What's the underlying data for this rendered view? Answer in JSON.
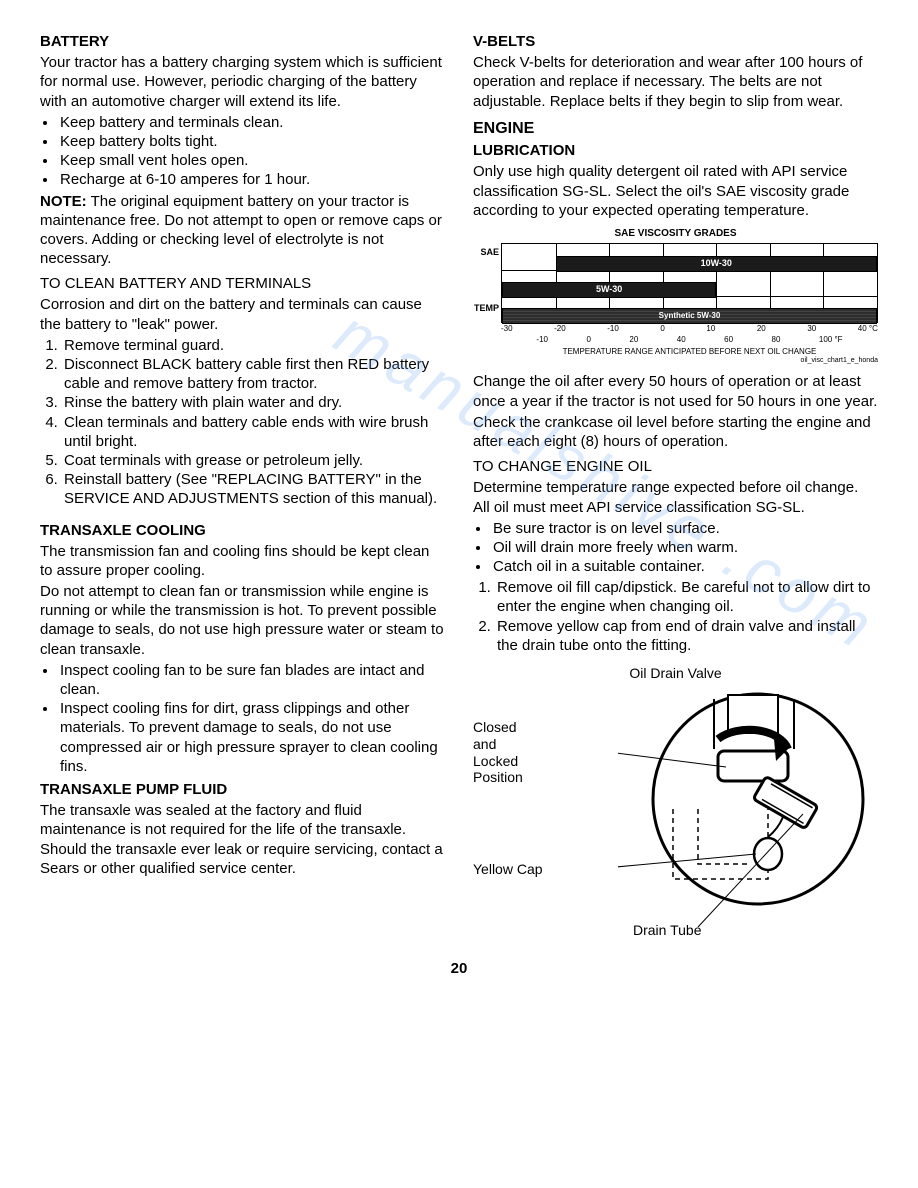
{
  "pageNumber": "20",
  "watermark": "manualshive .com",
  "left": {
    "battery": {
      "heading": "BATTERY",
      "p1": "Your tractor has a battery charging system which is sufficient for normal use.  However, periodic charging of the battery with an automotive charger will extend its life.",
      "bullets": [
        "Keep battery and terminals clean.",
        "Keep battery bolts tight.",
        "Keep small vent holes open.",
        "Recharge at  6-10 amperes for 1 hour."
      ],
      "noteLabel": "NOTE:",
      "noteText": " The original equipment battery on your tractor is maintenance free. Do not attempt to open or remove caps or covers. Adding or checking level of electrolyte is not necessary.",
      "cleanHeading": "TO CLEAN BATTERY AND TERMINALS",
      "cleanP": "Corrosion and dirt on the battery and terminals can cause the battery to \"leak\" power.",
      "cleanSteps": [
        "Remove terminal guard.",
        "Disconnect BLACK battery cable first then RED  battery cable and remove battery from tractor.",
        "Rinse the battery with plain water and dry.",
        "Clean terminals and battery cable ends with wire brush until bright.",
        "Coat terminals with grease or petroleum jelly.",
        "Reinstall battery (See \"REPLACING BATTERY\" in the SERVICE AND ADJUSTMENTS section of this manual)."
      ]
    },
    "transCooling": {
      "heading": "TRANSAXLE COOLING",
      "p1": "The transmission fan and cooling fins should be kept clean to assure proper cooling.",
      "p2": "Do not attempt to clean fan or transmission while engine is running or while the transmission is hot. To prevent possible damage to seals, do not use high pressure water or steam to clean transaxle.",
      "bullets": [
        "Inspect cooling fan to be sure fan blades are intact and clean.",
        "Inspect cooling fins for dirt, grass clippings and other materials.  To prevent damage to seals, do not use compressed air or high pressure sprayer to clean cooling fins."
      ]
    },
    "pumpFluid": {
      "heading": "TRANSAXLE PUMP FLUID",
      "p": "The transaxle was sealed at the factory and fluid maintenance is not required for the life of the transaxle.  Should the transaxle ever leak or require servicing, contact a Sears or other qualified service center."
    }
  },
  "right": {
    "vbelts": {
      "heading": "V-BELTS",
      "p": "Check V-belts for deterioration and wear after 100 hours of operation and replace if necessary. The belts are not adjustable. Replace belts if they begin to slip from wear."
    },
    "engine": {
      "heading": "ENGINE",
      "lubHeading": "LUBRICATION",
      "lubP": "Only use high quality detergent oil rated with API service classification SG-SL.  Select the oil's SAE viscosity grade according to your expected operating temperature."
    },
    "saeChart": {
      "title": "SAE VISCOSITY GRADES",
      "yTop": "SAE",
      "yTemp": "TEMP",
      "tempCRange": [
        -30,
        40
      ],
      "axisC": [
        "-30",
        "-20",
        "-10",
        "0",
        "10",
        "20",
        "30",
        "40 °C"
      ],
      "axisF": [
        "-10",
        "0",
        "20",
        "40",
        "60",
        "80",
        "100 °F"
      ],
      "caption": "TEMPERATURE RANGE ANTICIPATED BEFORE NEXT OIL CHANGE",
      "caption2": "oil_visc_chart1_e_honda",
      "rowCount": 3,
      "gridCols": 7,
      "bars": [
        {
          "label": "10W-30",
          "row": 0,
          "fromC": -20,
          "toC": 40,
          "color": "#1b1b1b",
          "textColor": "#ffffff"
        },
        {
          "label": "5W-30",
          "row": 1,
          "fromC": -30,
          "toC": 10,
          "color": "#1b1b1b",
          "textColor": "#ffffff"
        },
        {
          "label": "Synthetic 5W-30",
          "row": 2,
          "fromC": -30,
          "toC": 40,
          "color": "#2d2d2d",
          "textColor": "#ffffff",
          "patterned": true
        }
      ],
      "colors": {
        "border": "#000000",
        "bg": "#ffffff"
      }
    },
    "oilChange": {
      "p1": "Change the oil after every 50 hours of operation or at least once a year if the tractor is not used for 50 hours in one year.",
      "p2": "Check the crankcase oil level before starting the engine and after each eight (8) hours of operation.",
      "changeHeading": "TO CHANGE ENGINE OIL",
      "changeP": "Determine temperature range expected before oil change.  All oil must meet API service classification SG-SL.",
      "bullets": [
        "Be sure tractor is on level surface.",
        "Oil will drain more freely when warm.",
        "Catch oil in a suitable container."
      ],
      "steps": [
        "Remove oil fill cap/dipstick.  Be careful not to allow dirt to enter the engine when changing oil.",
        "Remove yellow cap from end of drain valve and install the drain tube onto the fitting."
      ]
    },
    "drainFig": {
      "title": "Oil Drain Valve",
      "closedLabel": "Closed\nand\nLocked\nPosition",
      "yellowCap": "Yellow Cap",
      "drainTube": "Drain Tube",
      "circleStroke": "#000000",
      "lineWidth": 2
    }
  }
}
